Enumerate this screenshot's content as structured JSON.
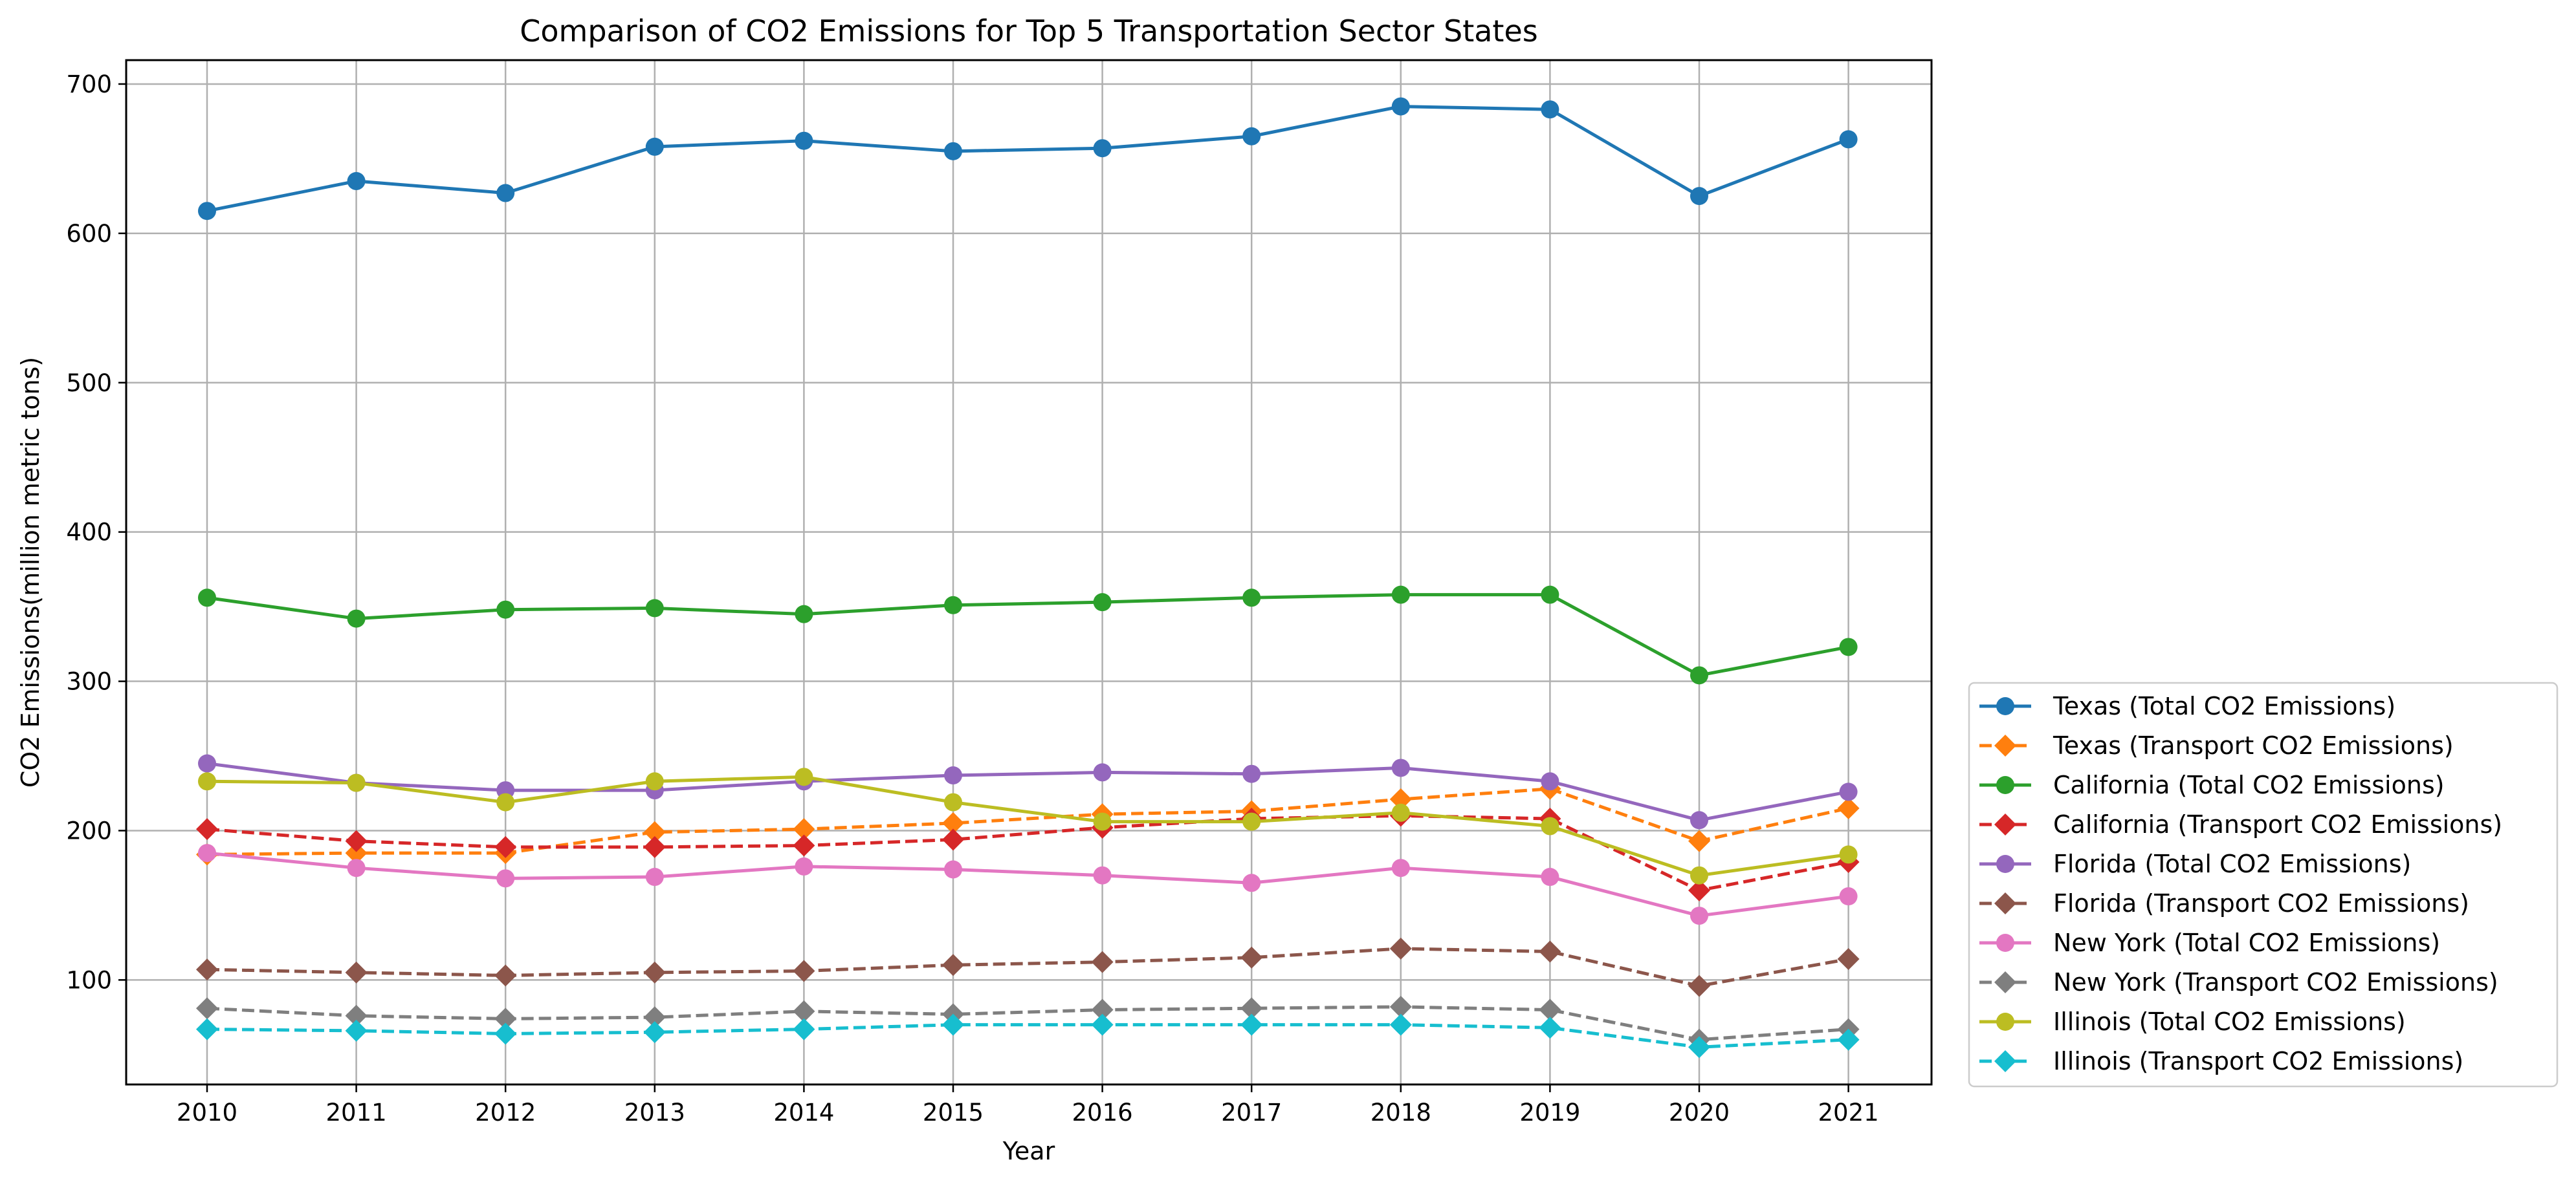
{
  "chart_data": {
    "type": "line",
    "title": "Comparison of CO2 Emissions for Top 5 Transportation Sector States",
    "xlabel": "Year",
    "ylabel": "CO2 Emissions(million metric tons)",
    "x": [
      2010,
      2011,
      2012,
      2013,
      2014,
      2015,
      2016,
      2017,
      2018,
      2019,
      2020,
      2021
    ],
    "ylim": [
      30,
      716
    ],
    "yticks": [
      100,
      200,
      300,
      400,
      500,
      600,
      700
    ],
    "grid": true,
    "legend_position": "lower-right outside",
    "series": [
      {
        "name": "Texas (Total CO2 Emissions)",
        "color": "#1f77b4",
        "linestyle": "solid",
        "marker": "circle",
        "values": [
          615,
          635,
          627,
          658,
          662,
          655,
          657,
          665,
          685,
          683,
          625,
          663
        ]
      },
      {
        "name": "Texas (Transport CO2 Emissions)",
        "color": "#ff7f0e",
        "linestyle": "dashed",
        "marker": "diamond",
        "values": [
          184,
          185,
          185,
          199,
          201,
          205,
          211,
          213,
          221,
          228,
          193,
          215
        ]
      },
      {
        "name": "California (Total CO2 Emissions)",
        "color": "#2ca02c",
        "linestyle": "solid",
        "marker": "circle",
        "values": [
          356,
          342,
          348,
          349,
          345,
          351,
          353,
          356,
          358,
          358,
          304,
          323
        ]
      },
      {
        "name": "California (Transport CO2 Emissions)",
        "color": "#d62728",
        "linestyle": "dashed",
        "marker": "diamond",
        "values": [
          201,
          193,
          189,
          189,
          190,
          194,
          202,
          208,
          210,
          208,
          160,
          179
        ]
      },
      {
        "name": "Florida (Total CO2 Emissions)",
        "color": "#9467bd",
        "linestyle": "solid",
        "marker": "circle",
        "values": [
          245,
          232,
          227,
          227,
          233,
          237,
          239,
          238,
          242,
          233,
          207,
          226
        ]
      },
      {
        "name": "Florida (Transport CO2 Emissions)",
        "color": "#8c564b",
        "linestyle": "dashed",
        "marker": "diamond",
        "values": [
          107,
          105,
          103,
          105,
          106,
          110,
          112,
          115,
          121,
          119,
          96,
          114
        ]
      },
      {
        "name": "New York (Total CO2 Emissions)",
        "color": "#e377c2",
        "linestyle": "solid",
        "marker": "circle",
        "values": [
          185,
          175,
          168,
          169,
          176,
          174,
          170,
          165,
          175,
          169,
          143,
          156
        ]
      },
      {
        "name": "New York (Transport CO2 Emissions)",
        "color": "#7f7f7f",
        "linestyle": "dashed",
        "marker": "diamond",
        "values": [
          81,
          76,
          74,
          75,
          79,
          77,
          80,
          81,
          82,
          80,
          60,
          67
        ]
      },
      {
        "name": "Illinois (Total CO2 Emissions)",
        "color": "#bcbd22",
        "linestyle": "solid",
        "marker": "circle",
        "values": [
          233,
          232,
          219,
          233,
          236,
          219,
          206,
          206,
          212,
          203,
          170,
          184
        ]
      },
      {
        "name": "Illinois (Transport CO2 Emissions)",
        "color": "#17becf",
        "linestyle": "dashed",
        "marker": "diamond",
        "values": [
          67,
          66,
          64,
          65,
          67,
          70,
          70,
          70,
          70,
          68,
          55,
          60
        ]
      }
    ]
  }
}
